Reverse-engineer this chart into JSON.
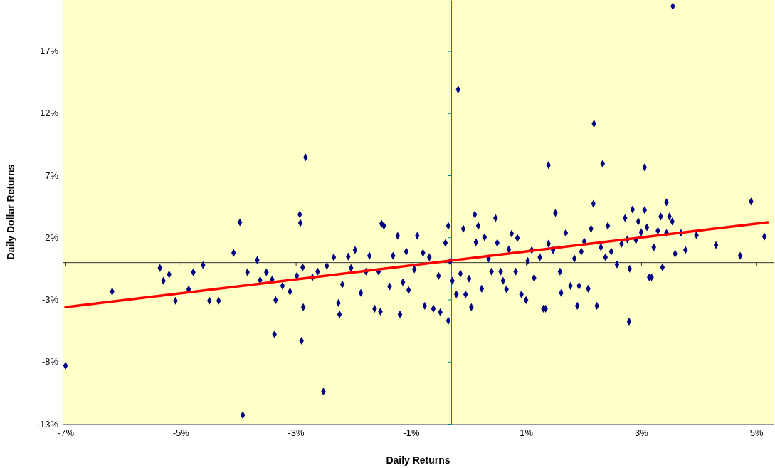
{
  "chart_data": {
    "type": "scatter",
    "xlabel": "Daily Returns",
    "ylabel": "Daily Dollar Returns",
    "marker": "diamond",
    "xlim": [
      -6.75,
      5.6
    ],
    "ylim": [
      -13,
      21.1
    ],
    "xticks": [
      {
        "value": -6.7,
        "label": "-7%"
      },
      {
        "value": -4.7,
        "label": "-5%"
      },
      {
        "value": -2.7,
        "label": "-3%"
      },
      {
        "value": -0.7,
        "label": "-1%"
      },
      {
        "value": 1.3,
        "label": "1%"
      },
      {
        "value": 3.3,
        "label": "3%"
      },
      {
        "value": 5.3,
        "label": "5%"
      }
    ],
    "yticks": [
      {
        "value": -13,
        "label": "-13%"
      },
      {
        "value": -8,
        "label": "-8%"
      },
      {
        "value": -3,
        "label": "-3%"
      },
      {
        "value": 2,
        "label": "2%"
      },
      {
        "value": 7,
        "label": "7%"
      },
      {
        "value": 12,
        "label": "12%"
      },
      {
        "value": 17,
        "label": "17%"
      }
    ],
    "ref_lines": [
      {
        "axis": "x",
        "value": 0,
        "color": "#008080"
      }
    ],
    "series": [
      {
        "color": "#000080",
        "x": [
          -6.7,
          -3.62,
          -2.22,
          -2.53,
          0.12,
          2.48,
          3.85,
          -0.05,
          3.09,
          -3.07,
          -2.6,
          -3.67,
          -2.63,
          -2.62,
          1.69,
          2.63,
          3.36,
          5.21,
          5.44,
          -5.89,
          -5.06,
          -5.0,
          -4.9,
          -4.79,
          -4.56,
          -4.48,
          -4.31,
          -4.2,
          -4.04,
          -3.78,
          -3.54,
          -3.37,
          -3.32,
          -3.21,
          -3.11,
          -3.05,
          -2.93,
          -2.8,
          -2.68,
          -2.58,
          -2.57,
          -2.41,
          -2.32,
          -2.16,
          -2.04,
          -1.96,
          -1.94,
          -1.89,
          -1.79,
          -1.74,
          -1.67,
          -1.57,
          -1.48,
          -1.42,
          -1.33,
          -1.26,
          -1.23,
          -1.21,
          -1.17,
          -1.07,
          -1.01,
          -0.93,
          -0.89,
          -0.84,
          -0.78,
          -0.74,
          -0.64,
          -0.59,
          -0.49,
          -0.46,
          -0.38,
          -0.31,
          -0.22,
          -0.19,
          -0.1,
          -0.05,
          -0.02,
          0.02,
          0.09,
          0.16,
          0.21,
          0.25,
          0.31,
          0.35,
          0.41,
          0.43,
          0.47,
          0.53,
          0.58,
          0.65,
          0.7,
          0.77,
          0.8,
          0.86,
          0.9,
          0.96,
          1.0,
          1.05,
          1.12,
          1.15,
          1.22,
          1.3,
          1.33,
          1.4,
          1.44,
          1.54,
          1.6,
          1.64,
          1.69,
          1.77,
          1.81,
          1.89,
          1.91,
          1.99,
          2.07,
          2.14,
          2.19,
          2.22,
          2.26,
          2.31,
          2.38,
          2.43,
          2.47,
          2.53,
          2.6,
          2.68,
          2.72,
          2.78,
          2.88,
          2.96,
          3.02,
          3.06,
          3.1,
          3.15,
          3.21,
          3.25,
          3.3,
          3.36,
          3.4,
          3.44,
          3.48,
          3.52,
          3.59,
          3.64,
          3.67,
          3.74,
          3.79,
          3.84,
          3.89,
          3.99,
          4.07,
          4.26,
          4.6,
          5.02,
          3.74
        ],
        "values": [
          -8.33,
          -12.3,
          -10.4,
          8.45,
          13.9,
          11.15,
          20.6,
          -4.71,
          -4.77,
          -5.8,
          -6.32,
          3.22,
          3.85,
          3.16,
          7.82,
          7.93,
          7.64,
          4.89,
          2.07,
          -2.36,
          -0.46,
          -1.49,
          -0.98,
          -3.1,
          -2.18,
          -0.8,
          -0.23,
          -3.1,
          -3.1,
          0.75,
          -0.8,
          0.17,
          -1.44,
          -0.8,
          -1.38,
          -3.05,
          -1.9,
          -2.36,
          -1.09,
          -0.4,
          -3.62,
          -1.21,
          -0.75,
          -0.29,
          0.4,
          -3.28,
          -4.2,
          -1.78,
          0.46,
          -0.46,
          0.98,
          -2.47,
          -0.75,
          0.52,
          -3.74,
          -0.75,
          -3.97,
          3.1,
          2.93,
          -1.95,
          0.52,
          2.13,
          -4.2,
          -1.61,
          0.86,
          -2.24,
          -0.57,
          2.13,
          0.75,
          -3.51,
          0.4,
          -3.74,
          -1.09,
          -4.02,
          1.55,
          2.93,
          0.06,
          -1.49,
          -2.59,
          -0.92,
          2.7,
          -2.59,
          -1.32,
          -3.62,
          3.85,
          1.61,
          2.93,
          -2.13,
          2.01,
          0.29,
          -0.75,
          3.56,
          1.55,
          -0.75,
          -1.49,
          -2.18,
          1.03,
          2.3,
          -0.75,
          1.95,
          -2.59,
          -3.05,
          0.11,
          0.98,
          -1.26,
          0.4,
          -3.74,
          -3.74,
          1.49,
          0.98,
          3.97,
          -0.75,
          -2.47,
          2.36,
          -1.9,
          0.29,
          -3.51,
          -1.9,
          0.86,
          1.67,
          -2.13,
          2.7,
          4.71,
          -3.51,
          1.21,
          0.4,
          2.93,
          0.86,
          -0.17,
          1.49,
          3.56,
          1.84,
          -0.52,
          4.25,
          1.78,
          3.28,
          2.41,
          4.2,
          2.82,
          -1.21,
          -1.21,
          1.21,
          2.53,
          3.68,
          -0.4,
          2.36,
          3.68,
          3.28,
          0.69,
          2.36,
          0.98,
          2.18,
          1.38,
          0.52,
          4.83
        ]
      },
      {
        "type": "line",
        "marker": "none",
        "color": "#ff0000",
        "x": [
          -6.7,
          5.5
        ],
        "values": [
          -3.62,
          3.22
        ]
      }
    ]
  }
}
